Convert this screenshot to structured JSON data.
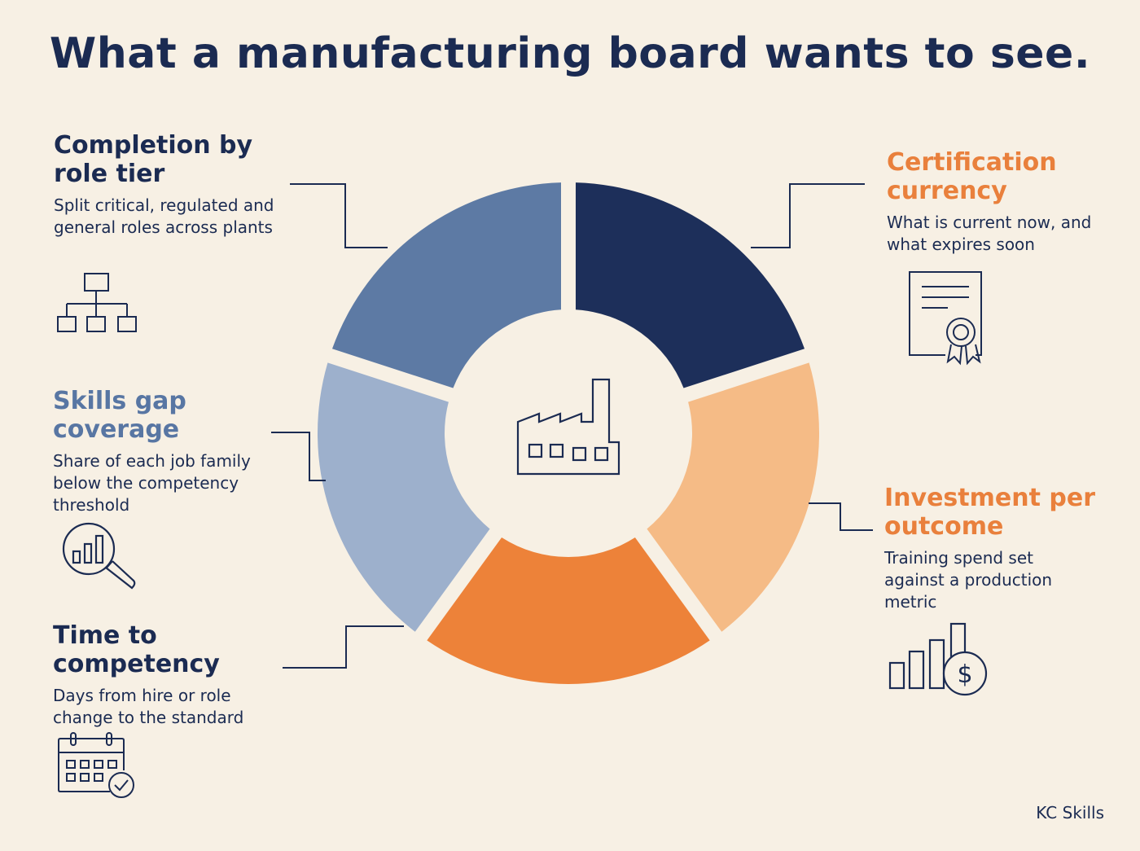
{
  "title": "What a manufacturing board wants to see.",
  "center_icon": "factory-icon",
  "segments": [
    {
      "heading": "Completion by role tier",
      "description": "Split critical, regulated and general roles across plants",
      "color": "#1d2f5a",
      "icon": "org-chart-icon"
    },
    {
      "heading": "Certification currency",
      "description": "What is current now, and what expires soon",
      "color": "#f5bb86",
      "icon": "certificate-icon"
    },
    {
      "heading": "Investment per outcome",
      "description": "Training spend set against a production metric",
      "color": "#ed8239",
      "icon": "bar-chart-dollar-icon"
    },
    {
      "heading": "Time to competency",
      "description": "Days from hire or role change to the standard",
      "color": "#9db0cc",
      "icon": "calendar-check-icon"
    },
    {
      "heading": "Skills gap coverage",
      "description": "Share of each job family below the competency threshold",
      "color": "#5d7aa4",
      "icon": "magnifier-chart-icon"
    }
  ],
  "brand": "KC Skills"
}
